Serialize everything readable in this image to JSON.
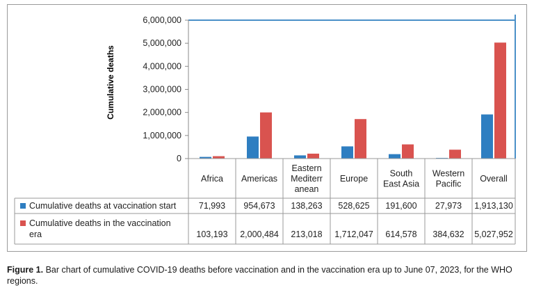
{
  "chart_data": {
    "type": "bar",
    "ylabel": "Cumulative deaths",
    "ylim": [
      0,
      6000000
    ],
    "yticks": [
      "0",
      "1,000,000",
      "2,000,000",
      "3,000,000",
      "4,000,000",
      "5,000,000",
      "6,000,000"
    ],
    "ytick_values": [
      0,
      1000000,
      2000000,
      3000000,
      4000000,
      5000000,
      6000000
    ],
    "categories": [
      [
        "Africa"
      ],
      [
        "Americas"
      ],
      [
        "Eastern",
        "Mediterr",
        "anean"
      ],
      [
        "Europe"
      ],
      [
        "South",
        "East Asia"
      ],
      [
        "Western",
        "Pacific"
      ],
      [
        "Overall"
      ]
    ],
    "series": [
      {
        "name": "Cumulative deaths at vaccination start",
        "name_lines": [
          "Cumulative deaths at vaccination start"
        ],
        "color": "#2E7EC1",
        "values": [
          71993,
          954673,
          138263,
          528625,
          191600,
          27973,
          1913130
        ],
        "labels": [
          "71,993",
          "954,673",
          "138,263",
          "528,625",
          "191,600",
          "27,973",
          "1,913,130"
        ]
      },
      {
        "name": "Cumulative deaths in the vaccination era",
        "name_lines": [
          "Cumulative deaths in the vaccination",
          "era"
        ],
        "color": "#D9534F",
        "values": [
          103193,
          2000484,
          213018,
          1712047,
          614578,
          384632,
          5027952
        ],
        "labels": [
          "103,193",
          "2,000,484",
          "213,018",
          "1,712,047",
          "614,578",
          "384,632",
          "5,027,952"
        ]
      }
    ]
  },
  "caption": {
    "label": "Figure 1.",
    "text": "Bar chart of cumulative COVID-19 deaths before vaccination and in the vaccination era up to June 07, 2023, for the WHO regions."
  }
}
